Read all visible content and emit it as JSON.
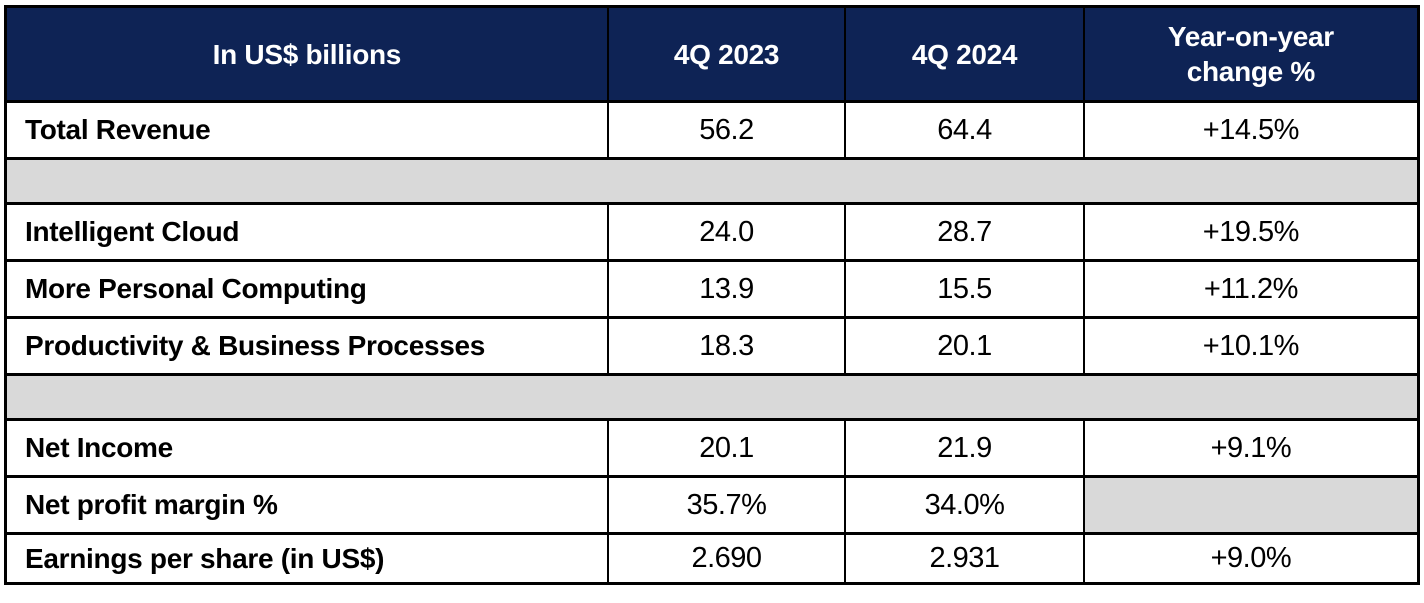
{
  "colors": {
    "header_bg": "#0E2355",
    "header_text": "#FFFFFF",
    "spacer_bg": "#D9D9D9",
    "border": "#000000",
    "body_text": "#000000"
  },
  "table": {
    "header": {
      "metric_label": "In US$ billions",
      "q4_2023": "4Q 2023",
      "q4_2024": "4Q 2024",
      "yoy_line1": "Year-on-year",
      "yoy_line2": "change %",
      "yoy_full": "Year-on-year change %"
    },
    "rows": [
      {
        "label": "Total Revenue",
        "q4_2023": "56.2",
        "q4_2024": "64.4",
        "yoy": "+14.5%"
      },
      {
        "label": "Intelligent Cloud",
        "q4_2023": "24.0",
        "q4_2024": "28.7",
        "yoy": "+19.5%"
      },
      {
        "label": "More Personal Computing",
        "q4_2023": "13.9",
        "q4_2024": "15.5",
        "yoy": "+11.2%"
      },
      {
        "label": "Productivity & Business Processes",
        "q4_2023": "18.3",
        "q4_2024": "20.1",
        "yoy": "+10.1%"
      },
      {
        "label": "Net Income",
        "q4_2023": "20.1",
        "q4_2024": "21.9",
        "yoy": "+9.1%"
      },
      {
        "label": "Net profit margin %",
        "q4_2023": "35.7%",
        "q4_2024": "34.0%",
        "yoy": ""
      },
      {
        "label": "Earnings per share (in US$)",
        "q4_2023": "2.690",
        "q4_2024": "2.931",
        "yoy": "+9.0%"
      }
    ]
  },
  "chart_data": {
    "type": "table",
    "title": "Quarterly results, in US$ billions",
    "columns": [
      "In US$ billions",
      "4Q 2023",
      "4Q 2024",
      "Year-on-year change %"
    ],
    "rows": [
      [
        "Total Revenue",
        56.2,
        64.4,
        "+14.5%"
      ],
      [
        "Intelligent Cloud",
        24.0,
        28.7,
        "+19.5%"
      ],
      [
        "More Personal Computing",
        13.9,
        15.5,
        "+11.2%"
      ],
      [
        "Productivity & Business Processes",
        18.3,
        20.1,
        "+10.1%"
      ],
      [
        "Net Income",
        20.1,
        21.9,
        "+9.1%"
      ],
      [
        "Net profit margin %",
        "35.7%",
        "34.0%",
        ""
      ],
      [
        "Earnings per share (in US$)",
        2.69,
        2.931,
        "+9.0%"
      ]
    ],
    "notes": "Gray full-width spacer rows appear after Total Revenue and after Productivity & Business Processes; the year-on-year cell for Net profit margin % is a gray blank cell."
  }
}
